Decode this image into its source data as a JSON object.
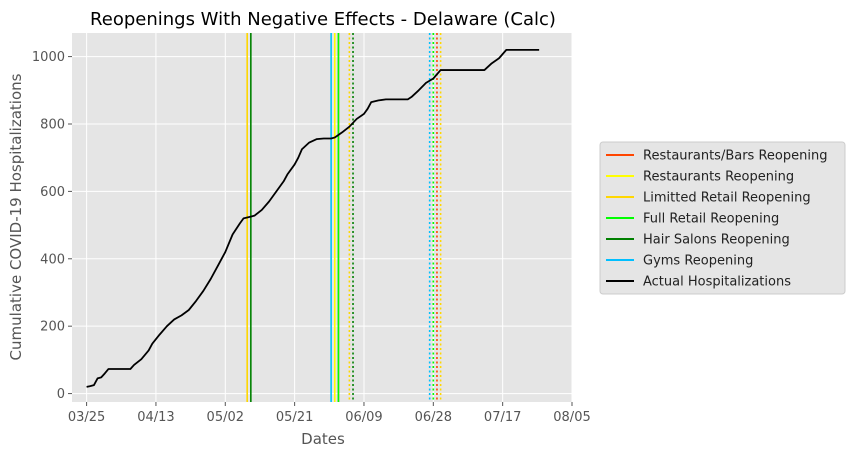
{
  "chart_data": {
    "type": "line",
    "title": "Reopenings With Negative Effects - Delaware (Calc)",
    "xlabel": "Dates",
    "ylabel": "Cumulative COVID-19 Hospitalizations",
    "x_axis": {
      "type": "date",
      "start": "2020-03-21",
      "end": "2020-08-05",
      "ticks": [
        {
          "date": "2020-03-25",
          "label": "03/25"
        },
        {
          "date": "2020-04-13",
          "label": "04/13"
        },
        {
          "date": "2020-05-02",
          "label": "05/02"
        },
        {
          "date": "2020-05-21",
          "label": "05/21"
        },
        {
          "date": "2020-06-09",
          "label": "06/09"
        },
        {
          "date": "2020-06-28",
          "label": "06/28"
        },
        {
          "date": "2020-07-17",
          "label": "07/17"
        },
        {
          "date": "2020-08-05",
          "label": "08/05"
        }
      ]
    },
    "y_axis": {
      "ylim": [
        -25,
        1070
      ],
      "ticks": [
        0,
        200,
        400,
        600,
        800,
        1000
      ]
    },
    "grid": true,
    "legend_position": "right",
    "legend": [
      {
        "label": "Restaurants/Bars Reopening",
        "color": "#ff4500"
      },
      {
        "label": "Restaurants Reopening",
        "color": "#ffff00"
      },
      {
        "label": "Limitted Retail Reopening",
        "color": "#ffd700"
      },
      {
        "label": "Full Retail Reopening",
        "color": "#00ff00"
      },
      {
        "label": "Hair Salons Reopening",
        "color": "#008000"
      },
      {
        "label": "Gyms Reopening",
        "color": "#00bfff"
      },
      {
        "label": "Actual Hospitalizations",
        "color": "#000000"
      }
    ],
    "vertical_lines": [
      {
        "date": "2020-05-08",
        "color": "#ffd700",
        "style": "solid"
      },
      {
        "date": "2020-05-09",
        "color": "#008000",
        "style": "solid"
      },
      {
        "date": "2020-05-31",
        "color": "#00bfff",
        "style": "solid"
      },
      {
        "date": "2020-06-01",
        "color": "#ffff00",
        "style": "solid"
      },
      {
        "date": "2020-06-02",
        "color": "#ff4500",
        "style": "solid"
      },
      {
        "date": "2020-06-02",
        "color": "#00ff00",
        "style": "solid"
      },
      {
        "date": "2020-06-05",
        "color": "#ffd700",
        "style": "dotted"
      },
      {
        "date": "2020-06-06",
        "color": "#008000",
        "style": "dotted"
      },
      {
        "date": "2020-06-27",
        "color": "#00bfff",
        "style": "dotted"
      },
      {
        "date": "2020-06-28",
        "color": "#00ff00",
        "style": "dotted"
      },
      {
        "date": "2020-06-29",
        "color": "#ff4500",
        "style": "dotted"
      },
      {
        "date": "2020-06-30",
        "color": "#ffd700",
        "style": "dotted"
      }
    ],
    "series": [
      {
        "name": "Actual Hospitalizations",
        "color": "#000000",
        "points": [
          [
            "2020-03-25",
            20
          ],
          [
            "2020-03-26",
            22
          ],
          [
            "2020-03-27",
            25
          ],
          [
            "2020-03-28",
            45
          ],
          [
            "2020-03-29",
            48
          ],
          [
            "2020-03-30",
            60
          ],
          [
            "2020-03-31",
            73
          ],
          [
            "2020-04-02",
            73
          ],
          [
            "2020-04-04",
            73
          ],
          [
            "2020-04-06",
            73
          ],
          [
            "2020-04-07",
            85
          ],
          [
            "2020-04-09",
            102
          ],
          [
            "2020-04-11",
            128
          ],
          [
            "2020-04-12",
            148
          ],
          [
            "2020-04-14",
            175
          ],
          [
            "2020-04-16",
            200
          ],
          [
            "2020-04-18",
            220
          ],
          [
            "2020-04-20",
            232
          ],
          [
            "2020-04-22",
            248
          ],
          [
            "2020-04-24",
            275
          ],
          [
            "2020-04-26",
            305
          ],
          [
            "2020-04-28",
            340
          ],
          [
            "2020-04-30",
            380
          ],
          [
            "2020-05-02",
            420
          ],
          [
            "2020-05-04",
            472
          ],
          [
            "2020-05-06",
            505
          ],
          [
            "2020-05-07",
            520
          ],
          [
            "2020-05-09",
            525
          ],
          [
            "2020-05-10",
            528
          ],
          [
            "2020-05-12",
            545
          ],
          [
            "2020-05-14",
            570
          ],
          [
            "2020-05-16",
            600
          ],
          [
            "2020-05-18",
            630
          ],
          [
            "2020-05-19",
            650
          ],
          [
            "2020-05-21",
            680
          ],
          [
            "2020-05-22",
            700
          ],
          [
            "2020-05-23",
            725
          ],
          [
            "2020-05-25",
            745
          ],
          [
            "2020-05-27",
            755
          ],
          [
            "2020-05-29",
            757
          ],
          [
            "2020-05-31",
            757
          ],
          [
            "2020-06-01",
            760
          ],
          [
            "2020-06-03",
            775
          ],
          [
            "2020-06-05",
            792
          ],
          [
            "2020-06-07",
            815
          ],
          [
            "2020-06-09",
            830
          ],
          [
            "2020-06-10",
            845
          ],
          [
            "2020-06-11",
            865
          ],
          [
            "2020-06-13",
            870
          ],
          [
            "2020-06-15",
            873
          ],
          [
            "2020-06-18",
            873
          ],
          [
            "2020-06-21",
            873
          ],
          [
            "2020-06-22",
            880
          ],
          [
            "2020-06-24",
            900
          ],
          [
            "2020-06-26",
            922
          ],
          [
            "2020-06-28",
            935
          ],
          [
            "2020-06-30",
            960
          ],
          [
            "2020-07-03",
            960
          ],
          [
            "2020-07-06",
            960
          ],
          [
            "2020-07-09",
            960
          ],
          [
            "2020-07-12",
            960
          ],
          [
            "2020-07-14",
            980
          ],
          [
            "2020-07-16",
            995
          ],
          [
            "2020-07-18",
            1020
          ],
          [
            "2020-07-21",
            1020
          ],
          [
            "2020-07-24",
            1020
          ],
          [
            "2020-07-27",
            1020
          ]
        ]
      }
    ]
  }
}
